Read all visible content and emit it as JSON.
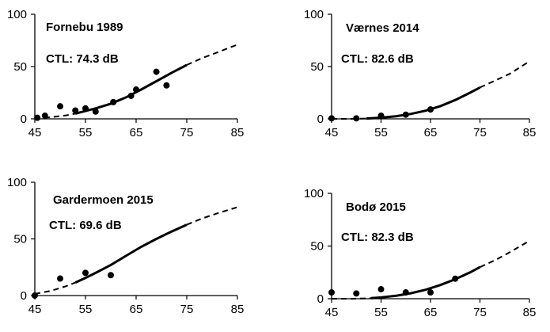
{
  "chart_data": [
    {
      "type": "scatter",
      "title": "Fornebu 1989",
      "ctl_label": "CTL:  74.3 dB",
      "xlim": [
        45,
        85
      ],
      "ylim": [
        0,
        100
      ],
      "x_ticks": [
        45,
        55,
        65,
        75,
        85
      ],
      "y_ticks": [
        0,
        50,
        100
      ],
      "curve_solid_range": [
        53,
        75
      ],
      "points": [
        {
          "x": 45.5,
          "y": 1
        },
        {
          "x": 47,
          "y": 3
        },
        {
          "x": 50,
          "y": 12
        },
        {
          "x": 53,
          "y": 8
        },
        {
          "x": 55,
          "y": 10
        },
        {
          "x": 57,
          "y": 7
        },
        {
          "x": 60.5,
          "y": 16
        },
        {
          "x": 64,
          "y": 22
        },
        {
          "x": 65,
          "y": 28
        },
        {
          "x": 69,
          "y": 45
        },
        {
          "x": 71,
          "y": 32
        }
      ],
      "curve": [
        [
          45,
          0.5
        ],
        [
          48,
          1.5
        ],
        [
          51,
          3.2
        ],
        [
          53,
          5
        ],
        [
          55,
          7.5
        ],
        [
          57,
          10
        ],
        [
          60,
          14.5
        ],
        [
          63,
          20.5
        ],
        [
          66,
          28
        ],
        [
          69,
          36
        ],
        [
          72,
          44
        ],
        [
          75,
          51.5
        ],
        [
          78,
          58
        ],
        [
          81,
          63.5
        ],
        [
          85,
          71
        ]
      ]
    },
    {
      "type": "scatter",
      "title": "Værnes 2014",
      "ctl_label": "CTL:  82.6 dB",
      "xlim": [
        45,
        85
      ],
      "ylim": [
        0,
        100
      ],
      "x_ticks": [
        45,
        55,
        65,
        75,
        85
      ],
      "y_ticks": [
        0,
        50,
        100
      ],
      "curve_solid_range": [
        52,
        75
      ],
      "points": [
        {
          "x": 45,
          "y": 0.5
        },
        {
          "x": 50,
          "y": 0.5
        },
        {
          "x": 55,
          "y": 3
        },
        {
          "x": 60,
          "y": 4
        },
        {
          "x": 65,
          "y": 9
        }
      ],
      "curve": [
        [
          45,
          0
        ],
        [
          49,
          0
        ],
        [
          52,
          0.3
        ],
        [
          55,
          1.1
        ],
        [
          58,
          2.5
        ],
        [
          61,
          4.7
        ],
        [
          64,
          7.8
        ],
        [
          67,
          12.2
        ],
        [
          70,
          18
        ],
        [
          73,
          25
        ],
        [
          75,
          30
        ],
        [
          78,
          36.5
        ],
        [
          81,
          43
        ],
        [
          85,
          55
        ]
      ]
    },
    {
      "type": "scatter",
      "title": "Gardermoen  2015",
      "ctl_label": "CTL:  69.6 dB",
      "xlim": [
        45,
        85
      ],
      "ylim": [
        0,
        100
      ],
      "x_ticks": [
        45,
        55,
        65,
        75,
        85
      ],
      "y_ticks": [
        0,
        50,
        100
      ],
      "curve_solid_range": [
        53,
        75
      ],
      "points": [
        {
          "x": 45,
          "y": 0
        },
        {
          "x": 50,
          "y": 15
        },
        {
          "x": 55,
          "y": 20
        },
        {
          "x": 60,
          "y": 18
        }
      ],
      "curve": [
        [
          45,
          1.5
        ],
        [
          48,
          4
        ],
        [
          51,
          8
        ],
        [
          53,
          11.5
        ],
        [
          55,
          15.5
        ],
        [
          57,
          20
        ],
        [
          60,
          27
        ],
        [
          63,
          35
        ],
        [
          66,
          43
        ],
        [
          69,
          50
        ],
        [
          72,
          56.5
        ],
        [
          75,
          62.5
        ],
        [
          78,
          68
        ],
        [
          81,
          72.5
        ],
        [
          85,
          78
        ]
      ]
    },
    {
      "type": "scatter",
      "title": "Bodø 2015",
      "ctl_label": "CTL:  82.3 dB",
      "xlim": [
        45,
        85
      ],
      "ylim": [
        0,
        100
      ],
      "x_ticks": [
        45,
        55,
        65,
        75,
        85
      ],
      "y_ticks": [
        0,
        50,
        100
      ],
      "curve_solid_range": [
        53,
        75
      ],
      "points": [
        {
          "x": 45,
          "y": 6
        },
        {
          "x": 50,
          "y": 5
        },
        {
          "x": 55,
          "y": 9
        },
        {
          "x": 60,
          "y": 6
        },
        {
          "x": 65,
          "y": 6
        },
        {
          "x": 70,
          "y": 19
        }
      ],
      "curve": [
        [
          45,
          0
        ],
        [
          49,
          0
        ],
        [
          52,
          0.3
        ],
        [
          55,
          1.2
        ],
        [
          58,
          2.8
        ],
        [
          61,
          5.2
        ],
        [
          64,
          8.5
        ],
        [
          67,
          13
        ],
        [
          70,
          18.5
        ],
        [
          73,
          25
        ],
        [
          75,
          30
        ],
        [
          78,
          36.5
        ],
        [
          81,
          44
        ],
        [
          85,
          55
        ]
      ]
    }
  ]
}
